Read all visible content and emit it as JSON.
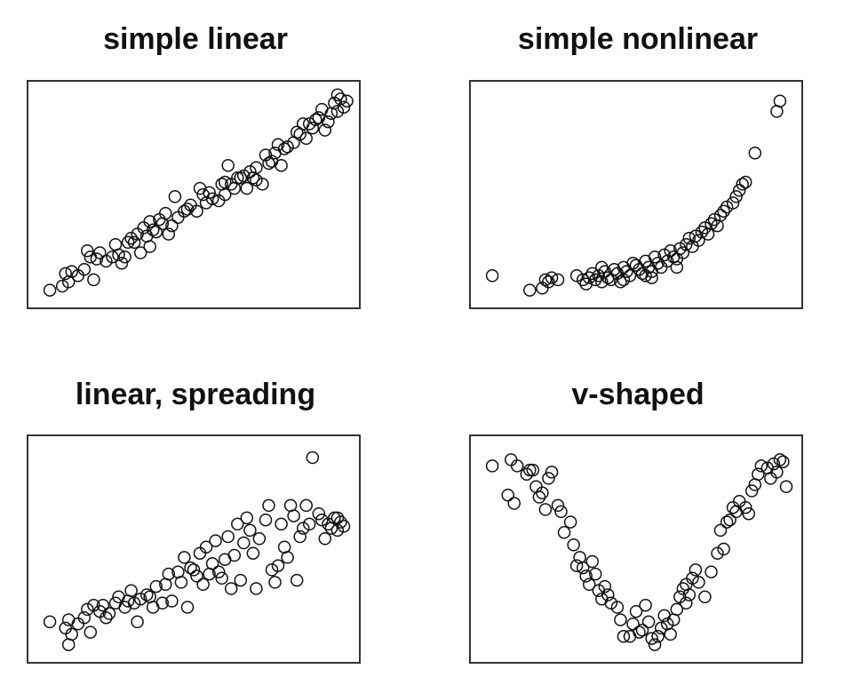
{
  "chart_data": [
    {
      "type": "scatter",
      "title": "simple linear",
      "axes_visible": false,
      "marker": "open-circle",
      "xlim": [
        0,
        10
      ],
      "ylim": [
        0,
        10
      ],
      "points": [
        [
          0.4,
          0.4
        ],
        [
          0.8,
          0.6
        ],
        [
          1.0,
          0.8
        ],
        [
          0.9,
          1.2
        ],
        [
          1.1,
          1.3
        ],
        [
          1.5,
          1.4
        ],
        [
          1.8,
          0.9
        ],
        [
          1.6,
          2.3
        ],
        [
          1.7,
          2.0
        ],
        [
          1.9,
          1.9
        ],
        [
          2.0,
          2.2
        ],
        [
          2.2,
          1.8
        ],
        [
          2.5,
          2.6
        ],
        [
          2.6,
          2.1
        ],
        [
          2.8,
          2.0
        ],
        [
          2.9,
          2.7
        ],
        [
          3.1,
          2.7
        ],
        [
          3.3,
          2.2
        ],
        [
          3.5,
          3.0
        ],
        [
          3.6,
          2.5
        ],
        [
          3.0,
          2.9
        ],
        [
          3.4,
          3.4
        ],
        [
          3.7,
          3.3
        ],
        [
          3.9,
          3.8
        ],
        [
          3.6,
          3.7
        ],
        [
          4.2,
          3.1
        ],
        [
          4.3,
          3.5
        ],
        [
          4.5,
          3.9
        ],
        [
          4.7,
          4.2
        ],
        [
          4.1,
          4.1
        ],
        [
          4.9,
          4.5
        ],
        [
          5.1,
          4.2
        ],
        [
          5.4,
          4.6
        ],
        [
          5.6,
          4.8
        ],
        [
          5.8,
          4.7
        ],
        [
          5.5,
          5.1
        ],
        [
          6.0,
          5.0
        ],
        [
          6.2,
          5.5
        ],
        [
          6.3,
          5.3
        ],
        [
          6.5,
          5.8
        ],
        [
          6.0,
          5.6
        ],
        [
          5.2,
          5.3
        ],
        [
          6.6,
          5.9
        ],
        [
          6.8,
          6.1
        ],
        [
          7.0,
          6.3
        ],
        [
          7.2,
          5.5
        ],
        [
          6.9,
          5.8
        ],
        [
          7.3,
          6.9
        ],
        [
          7.5,
          6.6
        ],
        [
          7.6,
          7.0
        ],
        [
          7.4,
          6.5
        ],
        [
          7.0,
          5.7
        ],
        [
          6.4,
          5.8
        ],
        [
          6.7,
          5.3
        ],
        [
          7.8,
          6.4
        ],
        [
          8.0,
          7.3
        ],
        [
          8.2,
          7.5
        ],
        [
          7.9,
          7.2
        ],
        [
          8.4,
          7.9
        ],
        [
          8.6,
          7.7
        ],
        [
          8.8,
          8.2
        ],
        [
          8.5,
          8.4
        ],
        [
          9.0,
          8.7
        ],
        [
          8.9,
          8.6
        ],
        [
          9.2,
          8.1
        ],
        [
          9.4,
          8.9
        ],
        [
          9.5,
          9.4
        ],
        [
          9.6,
          9.0
        ],
        [
          9.8,
          9.2
        ],
        [
          9.7,
          9.6
        ],
        [
          9.9,
          9.5
        ],
        [
          9.6,
          9.8
        ],
        [
          9.3,
          8.5
        ],
        [
          9.1,
          9.1
        ],
        [
          8.7,
          8.4
        ],
        [
          8.3,
          8.0
        ],
        [
          7.7,
          7.4
        ],
        [
          5.9,
          5.5
        ],
        [
          4.8,
          4.3
        ],
        [
          4.0,
          3.6
        ],
        [
          3.2,
          3.1
        ],
        [
          2.4,
          2.0
        ],
        [
          1.3,
          1.1
        ],
        [
          5.3,
          5.0
        ],
        [
          6.1,
          6.4
        ],
        [
          4.4,
          4.9
        ],
        [
          2.7,
          1.7
        ],
        [
          3.8,
          3.2
        ]
      ]
    },
    {
      "type": "scatter",
      "title": "simple nonlinear",
      "axes_visible": false,
      "marker": "open-circle",
      "xlim": [
        0,
        10
      ],
      "ylim": [
        0,
        10
      ],
      "points": [
        [
          0.4,
          1.1
        ],
        [
          1.6,
          0.4
        ],
        [
          2.0,
          0.5
        ],
        [
          2.1,
          0.9
        ],
        [
          2.3,
          1.0
        ],
        [
          2.5,
          0.9
        ],
        [
          2.2,
          0.8
        ],
        [
          3.1,
          1.1
        ],
        [
          3.3,
          0.9
        ],
        [
          3.4,
          0.7
        ],
        [
          3.5,
          1.0
        ],
        [
          3.6,
          1.2
        ],
        [
          3.7,
          0.9
        ],
        [
          3.8,
          1.1
        ],
        [
          3.9,
          0.8
        ],
        [
          4.0,
          1.3
        ],
        [
          4.1,
          1.0
        ],
        [
          4.2,
          0.9
        ],
        [
          4.3,
          1.4
        ],
        [
          4.4,
          1.2
        ],
        [
          4.5,
          0.8
        ],
        [
          4.6,
          1.5
        ],
        [
          4.7,
          1.3
        ],
        [
          4.8,
          1.1
        ],
        [
          5.0,
          1.6
        ],
        [
          5.1,
          1.4
        ],
        [
          5.2,
          1.2
        ],
        [
          5.3,
          1.8
        ],
        [
          5.4,
          1.5
        ],
        [
          5.5,
          1.3
        ],
        [
          5.6,
          2.0
        ],
        [
          5.7,
          1.7
        ],
        [
          5.8,
          1.5
        ],
        [
          5.9,
          2.1
        ],
        [
          6.0,
          1.8
        ],
        [
          6.1,
          2.3
        ],
        [
          6.2,
          2.0
        ],
        [
          6.3,
          1.9
        ],
        [
          6.4,
          2.4
        ],
        [
          6.5,
          2.2
        ],
        [
          6.6,
          2.6
        ],
        [
          6.7,
          2.9
        ],
        [
          6.8,
          2.5
        ],
        [
          6.9,
          3.0
        ],
        [
          7.0,
          2.8
        ],
        [
          7.1,
          3.2
        ],
        [
          7.2,
          3.4
        ],
        [
          7.3,
          3.1
        ],
        [
          7.4,
          3.6
        ],
        [
          7.5,
          3.8
        ],
        [
          7.6,
          3.5
        ],
        [
          7.7,
          4.0
        ],
        [
          7.8,
          4.2
        ],
        [
          7.9,
          4.4
        ],
        [
          8.1,
          4.6
        ],
        [
          8.2,
          4.9
        ],
        [
          8.3,
          5.2
        ],
        [
          8.4,
          5.5
        ],
        [
          8.5,
          5.6
        ],
        [
          8.8,
          7.0
        ],
        [
          9.5,
          9.0
        ],
        [
          9.6,
          9.5
        ],
        [
          5.5,
          1.0
        ],
        [
          4.9,
          1.7
        ],
        [
          3.9,
          1.5
        ],
        [
          4.6,
          0.9
        ],
        [
          5.3,
          1.1
        ],
        [
          6.3,
          1.5
        ]
      ]
    },
    {
      "type": "scatter",
      "title": "linear, spreading",
      "axes_visible": false,
      "marker": "open-circle",
      "xlim": [
        0,
        10
      ],
      "ylim": [
        0,
        10
      ],
      "points": [
        [
          0.4,
          1.5
        ],
        [
          0.9,
          1.2
        ],
        [
          1.0,
          1.6
        ],
        [
          1.1,
          0.9
        ],
        [
          1.0,
          0.4
        ],
        [
          1.5,
          1.7
        ],
        [
          1.6,
          2.1
        ],
        [
          1.7,
          1.0
        ],
        [
          1.8,
          2.3
        ],
        [
          2.0,
          2.0
        ],
        [
          2.1,
          2.3
        ],
        [
          2.3,
          1.9
        ],
        [
          2.5,
          2.4
        ],
        [
          2.6,
          2.7
        ],
        [
          2.8,
          2.2
        ],
        [
          2.9,
          2.5
        ],
        [
          3.0,
          3.0
        ],
        [
          3.1,
          2.4
        ],
        [
          3.2,
          1.5
        ],
        [
          3.3,
          2.6
        ],
        [
          3.5,
          2.8
        ],
        [
          3.7,
          2.2
        ],
        [
          3.8,
          3.2
        ],
        [
          4.0,
          2.4
        ],
        [
          4.1,
          3.3
        ],
        [
          4.2,
          3.8
        ],
        [
          4.3,
          2.5
        ],
        [
          4.5,
          3.9
        ],
        [
          4.6,
          3.4
        ],
        [
          4.7,
          4.6
        ],
        [
          4.8,
          2.2
        ],
        [
          4.9,
          4.1
        ],
        [
          5.1,
          3.7
        ],
        [
          5.2,
          4.8
        ],
        [
          5.3,
          3.3
        ],
        [
          5.4,
          5.1
        ],
        [
          5.5,
          3.8
        ],
        [
          5.6,
          4.3
        ],
        [
          5.7,
          5.4
        ],
        [
          5.9,
          3.6
        ],
        [
          6.0,
          4.5
        ],
        [
          6.1,
          5.6
        ],
        [
          6.2,
          3.1
        ],
        [
          6.3,
          4.7
        ],
        [
          6.4,
          6.2
        ],
        [
          6.5,
          3.5
        ],
        [
          6.6,
          5.3
        ],
        [
          6.7,
          6.5
        ],
        [
          6.9,
          4.8
        ],
        [
          7.0,
          3.1
        ],
        [
          7.1,
          5.5
        ],
        [
          7.3,
          6.4
        ],
        [
          7.4,
          7.1
        ],
        [
          7.6,
          3.4
        ],
        [
          7.7,
          4.2
        ],
        [
          7.8,
          6.2
        ],
        [
          7.9,
          5.1
        ],
        [
          8.0,
          4.6
        ],
        [
          8.1,
          7.1
        ],
        [
          8.2,
          6.6
        ],
        [
          8.3,
          3.5
        ],
        [
          8.4,
          5.6
        ],
        [
          8.5,
          6.0
        ],
        [
          8.6,
          7.1
        ],
        [
          8.7,
          6.2
        ],
        [
          8.8,
          9.4
        ],
        [
          9.0,
          6.7
        ],
        [
          9.1,
          6.4
        ],
        [
          9.2,
          5.5
        ],
        [
          9.3,
          6.2
        ],
        [
          9.4,
          6.0
        ],
        [
          9.5,
          6.5
        ],
        [
          9.6,
          5.9
        ],
        [
          9.7,
          6.3
        ],
        [
          9.8,
          6.1
        ],
        [
          9.6,
          6.5
        ],
        [
          1.3,
          1.4
        ],
        [
          2.2,
          1.7
        ],
        [
          3.6,
          2.7
        ],
        [
          5.0,
          4.0
        ],
        [
          5.8,
          3.9
        ],
        [
          6.8,
          5.9
        ],
        [
          7.5,
          4.0
        ]
      ]
    },
    {
      "type": "scatter",
      "title": "v-shaped",
      "axes_visible": false,
      "marker": "open-circle",
      "xlim": [
        0,
        10
      ],
      "ylim": [
        0,
        10
      ],
      "points": [
        [
          0.4,
          9.0
        ],
        [
          0.9,
          7.6
        ],
        [
          1.0,
          9.3
        ],
        [
          1.1,
          7.2
        ],
        [
          1.2,
          9.0
        ],
        [
          1.5,
          8.6
        ],
        [
          1.6,
          8.8
        ],
        [
          1.7,
          8.8
        ],
        [
          1.8,
          8.0
        ],
        [
          1.9,
          7.5
        ],
        [
          2.0,
          7.7
        ],
        [
          2.1,
          6.9
        ],
        [
          2.3,
          8.7
        ],
        [
          2.5,
          7.1
        ],
        [
          2.6,
          6.8
        ],
        [
          2.7,
          5.8
        ],
        [
          2.9,
          6.3
        ],
        [
          3.0,
          5.2
        ],
        [
          3.2,
          4.6
        ],
        [
          3.3,
          4.1
        ],
        [
          3.4,
          3.7
        ],
        [
          3.5,
          3.3
        ],
        [
          3.6,
          4.4
        ],
        [
          3.7,
          3.8
        ],
        [
          3.8,
          3.0
        ],
        [
          3.9,
          2.6
        ],
        [
          4.0,
          3.2
        ],
        [
          4.1,
          2.8
        ],
        [
          4.2,
          2.4
        ],
        [
          4.4,
          2.2
        ],
        [
          4.5,
          1.6
        ],
        [
          4.6,
          0.8
        ],
        [
          4.8,
          0.8
        ],
        [
          4.9,
          1.4
        ],
        [
          5.0,
          2.0
        ],
        [
          5.2,
          1.1
        ],
        [
          5.3,
          2.3
        ],
        [
          5.4,
          1.5
        ],
        [
          5.5,
          0.7
        ],
        [
          5.6,
          0.4
        ],
        [
          5.7,
          0.8
        ],
        [
          5.8,
          1.2
        ],
        [
          5.9,
          1.8
        ],
        [
          6.0,
          1.4
        ],
        [
          6.1,
          0.9
        ],
        [
          6.2,
          1.6
        ],
        [
          6.3,
          2.1
        ],
        [
          6.4,
          2.7
        ],
        [
          6.5,
          3.1
        ],
        [
          6.6,
          3.3
        ],
        [
          6.7,
          2.8
        ],
        [
          6.8,
          3.6
        ],
        [
          6.9,
          4.0
        ],
        [
          7.0,
          3.4
        ],
        [
          7.2,
          2.7
        ],
        [
          7.4,
          3.9
        ],
        [
          7.6,
          4.8
        ],
        [
          7.7,
          5.9
        ],
        [
          7.9,
          6.3
        ],
        [
          8.0,
          6.4
        ],
        [
          8.1,
          7.0
        ],
        [
          8.2,
          6.8
        ],
        [
          8.3,
          7.3
        ],
        [
          8.5,
          7.0
        ],
        [
          8.6,
          6.7
        ],
        [
          8.7,
          7.8
        ],
        [
          8.8,
          8.1
        ],
        [
          8.9,
          8.6
        ],
        [
          9.0,
          9.0
        ],
        [
          9.2,
          8.9
        ],
        [
          9.3,
          8.4
        ],
        [
          9.4,
          9.1
        ],
        [
          9.5,
          8.7
        ],
        [
          9.6,
          9.3
        ],
        [
          9.7,
          9.2
        ],
        [
          9.8,
          8.0
        ],
        [
          7.8,
          5.0
        ],
        [
          5.1,
          1.0
        ],
        [
          3.1,
          4.2
        ],
        [
          2.2,
          8.4
        ],
        [
          6.6,
          2.4
        ]
      ]
    }
  ]
}
